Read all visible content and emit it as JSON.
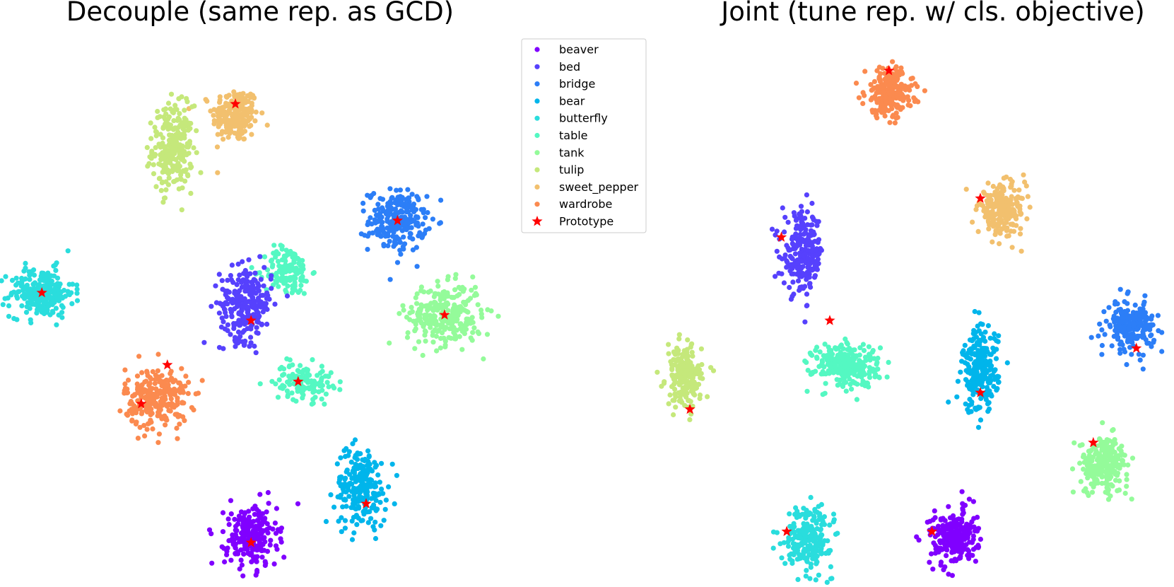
{
  "chart_data": [
    {
      "type": "scatter",
      "title": "Decouple (same rep. as GCD)",
      "xlabel": "",
      "ylabel": "",
      "axes_visible": false,
      "grid": false,
      "xlim": [
        0,
        100
      ],
      "ylim": [
        0,
        100
      ],
      "clusters": [
        {
          "class": "sweet_pepper",
          "center": [
            45,
            85
          ],
          "spread": [
            4.0,
            4.5
          ],
          "count": 220
        },
        {
          "class": "tulip",
          "center": [
            33,
            79
          ],
          "spread": [
            3.5,
            7.0
          ],
          "count": 260
        },
        {
          "class": "bridge",
          "center": [
            76,
            66
          ],
          "spread": [
            5.0,
            5.0
          ],
          "count": 230
        },
        {
          "class": "butterfly",
          "center": [
            8,
            53
          ],
          "spread": [
            5.5,
            4.0
          ],
          "count": 240
        },
        {
          "class": "table",
          "center": [
            55,
            57
          ],
          "spread": [
            4.0,
            4.0
          ],
          "count": 140
        },
        {
          "class": "bed",
          "center": [
            47,
            51
          ],
          "spread": [
            4.5,
            6.0
          ],
          "count": 260
        },
        {
          "class": "tank",
          "center": [
            85,
            49
          ],
          "spread": [
            6.5,
            5.0
          ],
          "count": 280
        },
        {
          "class": "table",
          "center": [
            58,
            37
          ],
          "spread": [
            5.0,
            3.0
          ],
          "count": 130
        },
        {
          "class": "wardrobe",
          "center": [
            30,
            34
          ],
          "spread": [
            5.5,
            5.0
          ],
          "count": 260
        },
        {
          "class": "bear",
          "center": [
            69,
            18
          ],
          "spread": [
            4.5,
            6.5
          ],
          "count": 230
        },
        {
          "class": "beaver",
          "center": [
            48,
            9
          ],
          "spread": [
            4.5,
            5.0
          ],
          "count": 230
        }
      ],
      "prototypes": [
        [
          45,
          87
        ],
        [
          76,
          66
        ],
        [
          8,
          53
        ],
        [
          48,
          48
        ],
        [
          85,
          49
        ],
        [
          57,
          37
        ],
        [
          32,
          40
        ],
        [
          27,
          33
        ],
        [
          70,
          15
        ],
        [
          48,
          8
        ]
      ],
      "legend": {
        "placement": "top-right",
        "entries": [
          {
            "label": "beaver",
            "color": "#8000ff",
            "marker": "circle"
          },
          {
            "label": "bed",
            "color": "#5641fd",
            "marker": "circle"
          },
          {
            "label": "bridge",
            "color": "#2c7ef7",
            "marker": "circle"
          },
          {
            "label": "bear",
            "color": "#00b5eb",
            "marker": "circle"
          },
          {
            "label": "butterfly",
            "color": "#2adddd",
            "marker": "circle"
          },
          {
            "label": "table",
            "color": "#54f8c2",
            "marker": "circle"
          },
          {
            "label": "tank",
            "color": "#94fb9a",
            "marker": "circle"
          },
          {
            "label": "tulip",
            "color": "#c5e87b",
            "marker": "circle"
          },
          {
            "label": "sweet_pepper",
            "color": "#f2c06e",
            "marker": "circle"
          },
          {
            "label": "wardrobe",
            "color": "#fb8a4f",
            "marker": "circle"
          },
          {
            "label": "Prototype",
            "color": "#ff0000",
            "marker": "star"
          }
        ]
      }
    },
    {
      "type": "scatter",
      "title": "Joint (tune rep. w/ cls. objective)",
      "xlabel": "",
      "ylabel": "",
      "axes_visible": false,
      "grid": false,
      "xlim": [
        0,
        100
      ],
      "ylim": [
        0,
        100
      ],
      "clusters": [
        {
          "class": "wardrobe",
          "center": [
            47,
            89
          ],
          "spread": [
            4.0,
            4.0
          ],
          "count": 240
        },
        {
          "class": "sweet_pepper",
          "center": [
            68,
            68
          ],
          "spread": [
            4.0,
            4.0
          ],
          "count": 220
        },
        {
          "class": "bed",
          "center": [
            31,
            60
          ],
          "spread": [
            3.5,
            6.5
          ],
          "count": 230
        },
        {
          "class": "bridge",
          "center": [
            92,
            47
          ],
          "spread": [
            4.0,
            4.0
          ],
          "count": 210
        },
        {
          "class": "table",
          "center": [
            39,
            40
          ],
          "spread": [
            5.5,
            3.5
          ],
          "count": 260
        },
        {
          "class": "bear",
          "center": [
            64,
            39
          ],
          "spread": [
            3.0,
            7.0
          ],
          "count": 240
        },
        {
          "class": "tulip",
          "center": [
            9,
            38
          ],
          "spread": [
            3.0,
            5.0
          ],
          "count": 200
        },
        {
          "class": "tank",
          "center": [
            87,
            22
          ],
          "spread": [
            4.0,
            4.5
          ],
          "count": 230
        },
        {
          "class": "butterfly",
          "center": [
            32,
            9
          ],
          "spread": [
            4.0,
            5.0
          ],
          "count": 230
        },
        {
          "class": "beaver",
          "center": [
            59,
            9
          ],
          "spread": [
            4.0,
            4.5
          ],
          "count": 230
        }
      ],
      "prototypes": [
        [
          47,
          93
        ],
        [
          64,
          70
        ],
        [
          27,
          63
        ],
        [
          36,
          48
        ],
        [
          64,
          35
        ],
        [
          93,
          43
        ],
        [
          10,
          32
        ],
        [
          85,
          26
        ],
        [
          28,
          10
        ],
        [
          55,
          10
        ]
      ]
    }
  ]
}
